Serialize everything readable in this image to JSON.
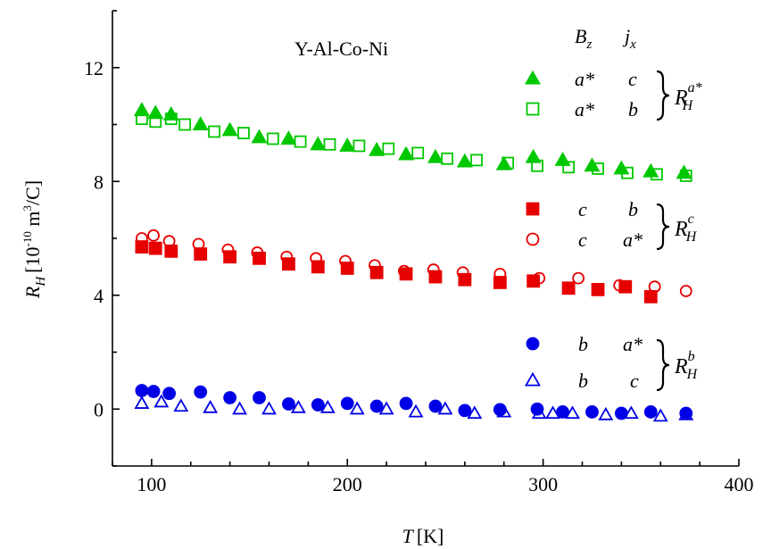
{
  "chart_data": {
    "type": "scatter",
    "title": "Y-Al-Co-Ni",
    "xlabel": {
      "symbol": "T",
      "unit": "[K]"
    },
    "ylabel": {
      "symbol": "R",
      "sub": "H",
      "unit_a": "[10",
      "unit_exp1": "-10",
      "unit_b": " m",
      "unit_exp2": "3",
      "unit_c": "/C]"
    },
    "xlim": [
      80,
      400
    ],
    "ylim": [
      -2,
      14
    ],
    "x_ticks": [
      100,
      200,
      300,
      400
    ],
    "x_tick_labels": [
      "100",
      "200",
      "300",
      "400"
    ],
    "y_ticks": [
      0,
      4,
      8,
      12
    ],
    "y_tick_labels": [
      "0",
      "4",
      "8",
      "12"
    ],
    "grid": false,
    "legend_header": {
      "b": "B",
      "b_sub": "z",
      "j": "j",
      "j_sub": "x"
    },
    "series": [
      {
        "name": {
          "a": "a*",
          "b": "c"
        },
        "marker": "triangle",
        "filled": true,
        "color": "#00c800",
        "x": [
          95,
          102,
          110,
          125,
          140,
          155,
          170,
          185,
          200,
          215,
          230,
          245,
          260,
          280,
          295,
          310,
          325,
          340,
          355,
          372
        ],
        "y": [
          10.5,
          10.4,
          10.35,
          10.0,
          9.8,
          9.55,
          9.5,
          9.3,
          9.25,
          9.1,
          8.95,
          8.85,
          8.7,
          8.6,
          8.85,
          8.75,
          8.55,
          8.45,
          8.35,
          8.3
        ]
      },
      {
        "name": {
          "a": "a*",
          "b": "b"
        },
        "marker": "square",
        "filled": false,
        "color": "#00c800",
        "x": [
          95,
          102,
          110,
          117,
          132,
          147,
          162,
          176,
          191,
          206,
          221,
          236,
          251,
          266,
          282,
          297,
          313,
          328,
          343,
          358,
          373
        ],
        "y": [
          10.2,
          10.1,
          10.2,
          10.0,
          9.75,
          9.7,
          9.5,
          9.4,
          9.3,
          9.25,
          9.15,
          9.0,
          8.8,
          8.75,
          8.65,
          8.55,
          8.5,
          8.45,
          8.3,
          8.25,
          8.2
        ]
      },
      {
        "name": {
          "a": "c",
          "b": "b"
        },
        "marker": "square",
        "filled": true,
        "color": "#e60000",
        "x": [
          95,
          102,
          110,
          125,
          140,
          155,
          170,
          185,
          200,
          215,
          230,
          245,
          260,
          278,
          295,
          313,
          328,
          342,
          355
        ],
        "y": [
          5.7,
          5.65,
          5.55,
          5.45,
          5.35,
          5.3,
          5.1,
          5.0,
          4.95,
          4.8,
          4.75,
          4.65,
          4.55,
          4.45,
          4.5,
          4.25,
          4.2,
          4.3,
          3.95
        ]
      },
      {
        "name": {
          "a": "c",
          "b": "a*"
        },
        "marker": "circle",
        "filled": false,
        "color": "#e60000",
        "x": [
          95,
          101,
          109,
          124,
          139,
          154,
          169,
          184,
          199,
          214,
          229,
          244,
          259,
          278,
          298,
          318,
          339,
          357,
          373
        ],
        "y": [
          6.0,
          6.1,
          5.9,
          5.8,
          5.6,
          5.5,
          5.35,
          5.3,
          5.2,
          5.05,
          4.85,
          4.9,
          4.8,
          4.75,
          4.6,
          4.6,
          4.35,
          4.3,
          4.15
        ]
      },
      {
        "name": {
          "a": "b",
          "b": "a*"
        },
        "marker": "circle",
        "filled": true,
        "color": "#0000e6",
        "x": [
          95,
          101,
          109,
          125,
          140,
          155,
          170,
          185,
          200,
          215,
          230,
          245,
          260,
          278,
          297,
          310,
          325,
          340,
          355,
          373
        ],
        "y": [
          0.65,
          0.62,
          0.55,
          0.6,
          0.4,
          0.4,
          0.18,
          0.15,
          0.2,
          0.1,
          0.2,
          0.1,
          -0.05,
          -0.02,
          0.0,
          -0.1,
          -0.1,
          -0.15,
          -0.1,
          -0.15
        ]
      },
      {
        "name": {
          "a": "b",
          "b": "c"
        },
        "marker": "triangle",
        "filled": false,
        "color": "#0000e6",
        "x": [
          95,
          105,
          115,
          130,
          145,
          160,
          175,
          190,
          205,
          220,
          235,
          250,
          265,
          280,
          298,
          305,
          315,
          332,
          345,
          360,
          373
        ],
        "y": [
          0.2,
          0.25,
          0.1,
          0.05,
          0.0,
          0.0,
          0.05,
          0.05,
          0.0,
          0.0,
          -0.1,
          0.0,
          -0.15,
          -0.1,
          -0.15,
          -0.15,
          -0.15,
          -0.2,
          -0.15,
          -0.25,
          -0.2
        ]
      }
    ],
    "groups": [
      {
        "symbol": "R",
        "sub": "H",
        "sup": "a*"
      },
      {
        "symbol": "R",
        "sub": "H",
        "sup": "c"
      },
      {
        "symbol": "R",
        "sub": "H",
        "sup": "b"
      }
    ]
  }
}
